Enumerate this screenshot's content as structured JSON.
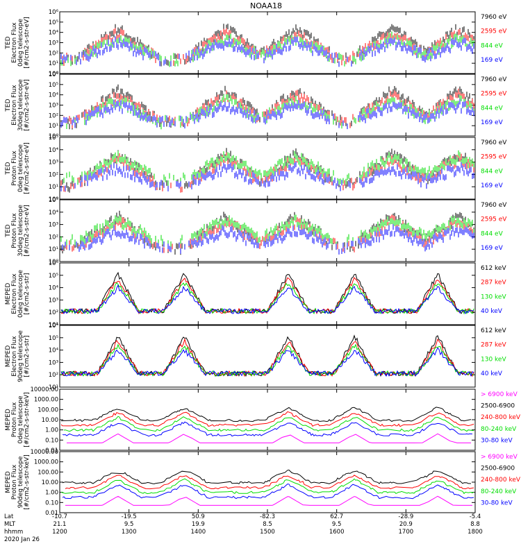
{
  "title": "NOAA18",
  "date": "2020 Jan 26",
  "colors": {
    "black": "#000000",
    "red": "#ff0000",
    "green": "#00dd00",
    "blue": "#0000ff",
    "magenta": "#ff00ff"
  },
  "time_axis": {
    "row_labels": [
      "Lat",
      "MLT",
      "hhmm"
    ],
    "columns": [
      {
        "lat": "-10.7",
        "mlt": "21.1",
        "hhmm": "1200"
      },
      {
        "lat": "-19.5",
        "mlt": "9.5",
        "hhmm": "1300"
      },
      {
        "lat": "50.9",
        "mlt": "19.9",
        "hhmm": "1400"
      },
      {
        "lat": "-82.3",
        "mlt": "8.5",
        "hhmm": "1500"
      },
      {
        "lat": "62.7",
        "mlt": "9.5",
        "hhmm": "1600"
      },
      {
        "lat": "-28.9",
        "mlt": "20.9",
        "hhmm": "1700"
      },
      {
        "lat": "-5.4",
        "mlt": "8.8",
        "hhmm": "1800"
      }
    ]
  },
  "chart_data": [
    {
      "type": "scatter",
      "panel": "ted-e-0",
      "ylabel": [
        "TED",
        "Electron Flux",
        "0deg telescope",
        "[#/cm2-s-str-eV]"
      ],
      "ylog": true,
      "yticks": [
        "10⁰",
        "10¹",
        "10²",
        "10³",
        "10⁴",
        "10⁵",
        "10⁶"
      ],
      "ylim_exp": [
        0,
        6
      ],
      "xlim_hhmm": [
        "1200",
        "1800"
      ],
      "legend": [
        {
          "label": "7960 eV",
          "color": "black"
        },
        {
          "label": "2595 eV",
          "color": "red"
        },
        {
          "label": "844 eV",
          "color": "green"
        },
        {
          "label": "169 eV",
          "color": "blue"
        }
      ]
    },
    {
      "type": "scatter",
      "panel": "ted-e-30",
      "ylabel": [
        "TED",
        "Electron Flux",
        "30deg telescope",
        "[#/cm2-s-str-eV]"
      ],
      "ylog": true,
      "yticks": [
        "10⁰",
        "10¹",
        "10²",
        "10³",
        "10⁴",
        "10⁵",
        "10⁶"
      ],
      "ylim_exp": [
        0,
        6
      ],
      "xlim_hhmm": [
        "1200",
        "1800"
      ],
      "legend": [
        {
          "label": "7960 eV",
          "color": "black"
        },
        {
          "label": "2595 eV",
          "color": "red"
        },
        {
          "label": "844 eV",
          "color": "green"
        },
        {
          "label": "169 eV",
          "color": "blue"
        }
      ]
    },
    {
      "type": "scatter",
      "panel": "ted-p-0",
      "ylabel": [
        "TED",
        "Proton Flux",
        "0deg telescope",
        "[#/cm2-s-str-eV]"
      ],
      "ylog": true,
      "yticks": [
        "10⁰",
        "10¹",
        "10²",
        "10³",
        "10⁴",
        "10⁵"
      ],
      "ylim_exp": [
        0,
        5
      ],
      "xlim_hhmm": [
        "1200",
        "1800"
      ],
      "legend": [
        {
          "label": "7960 eV",
          "color": "black"
        },
        {
          "label": "2595 eV",
          "color": "red"
        },
        {
          "label": "844 eV",
          "color": "green"
        },
        {
          "label": "169 eV",
          "color": "blue"
        }
      ]
    },
    {
      "type": "scatter",
      "panel": "ted-p-30",
      "ylabel": [
        "TED",
        "Proton Flux",
        "30deg telescope",
        "[#/cm2-s-str-eV]"
      ],
      "ylog": true,
      "yticks": [
        "10⁰",
        "10¹",
        "10²",
        "10³",
        "10⁴",
        "10⁵"
      ],
      "ylim_exp": [
        0,
        5
      ],
      "xlim_hhmm": [
        "1200",
        "1800"
      ],
      "legend": [
        {
          "label": "7960 eV",
          "color": "black"
        },
        {
          "label": "2595 eV",
          "color": "red"
        },
        {
          "label": "844 eV",
          "color": "green"
        },
        {
          "label": "169 eV",
          "color": "blue"
        }
      ]
    },
    {
      "type": "line",
      "panel": "meped-e-0",
      "ylabel": [
        "MEPED",
        "Electron Flux",
        "0deg telescope",
        "[#/cm2-s-str]"
      ],
      "ylog": true,
      "yticks": [
        "10¹",
        "10²",
        "10³",
        "10⁴",
        "10⁵",
        "10⁶"
      ],
      "ylim_exp": [
        1,
        6
      ],
      "xlim_hhmm": [
        "1200",
        "1800"
      ],
      "legend": [
        {
          "label": "612 keV",
          "color": "black"
        },
        {
          "label": "287 keV",
          "color": "red"
        },
        {
          "label": "130 keV",
          "color": "green"
        },
        {
          "label": "40 keV",
          "color": "blue"
        }
      ]
    },
    {
      "type": "line",
      "panel": "meped-e-90",
      "ylabel": [
        "MEPED",
        "Electron Flux",
        "90deg telescope",
        "[#/cm2-s-str]"
      ],
      "ylog": true,
      "yticks": [
        "10¹",
        "10²",
        "10³",
        "10⁴",
        "10⁵",
        "10⁶"
      ],
      "ylim_exp": [
        1,
        6
      ],
      "xlim_hhmm": [
        "1200",
        "1800"
      ],
      "legend": [
        {
          "label": "612 keV",
          "color": "black"
        },
        {
          "label": "287 keV",
          "color": "red"
        },
        {
          "label": "130 keV",
          "color": "green"
        },
        {
          "label": "40 keV",
          "color": "blue"
        }
      ]
    },
    {
      "type": "line",
      "panel": "meped-p-0",
      "ylabel": [
        "MEPED",
        "Proton Flux",
        "0deg telescope",
        "[#/cm2-s-str-keV]"
      ],
      "ylog": true,
      "yticks": [
        "0.01",
        "0.10",
        "1.00",
        "10.00",
        "100.00",
        "1000.00",
        "10000.00"
      ],
      "ylim_exp": [
        -2,
        4
      ],
      "xlim_hhmm": [
        "1200",
        "1800"
      ],
      "legend": [
        {
          "label": "> 6900 keV",
          "color": "magenta"
        },
        {
          "label": "2500-6900",
          "color": "black"
        },
        {
          "label": "240-800 keV",
          "color": "red"
        },
        {
          "label": "80-240 keV",
          "color": "green"
        },
        {
          "label": "30-80 keV",
          "color": "blue"
        }
      ]
    },
    {
      "type": "line",
      "panel": "meped-p-90",
      "ylabel": [
        "MEPED",
        "Proton Flux",
        "90deg telescope",
        "[#/cm2-s-str-keV]"
      ],
      "ylog": true,
      "yticks": [
        "0.01",
        "0.10",
        "1.00",
        "10.00",
        "100.00",
        "1000.00",
        "10000.00"
      ],
      "ylim_exp": [
        -2,
        4
      ],
      "xlim_hhmm": [
        "1200",
        "1800"
      ],
      "legend": [
        {
          "label": "> 6900 keV",
          "color": "magenta"
        },
        {
          "label": "2500-6900",
          "color": "black"
        },
        {
          "label": "240-800 keV",
          "color": "red"
        },
        {
          "label": "80-240 keV",
          "color": "green"
        },
        {
          "label": "30-80 keV",
          "color": "blue"
        }
      ]
    }
  ]
}
